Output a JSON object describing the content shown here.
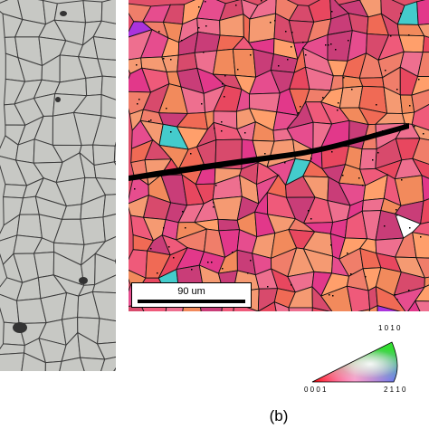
{
  "panel_b": {
    "caption": "(b)",
    "scale_bar": {
      "label": "90 um"
    },
    "color_key": {
      "top_label": "1 0 1 0",
      "left_label": "0 0 0 1",
      "right_label": "2 1 1 0"
    }
  },
  "colors": {
    "optical_background": "#c7c8c4",
    "grain_boundary": "#3b3b3b",
    "ebsd_palette": [
      "#e8475f",
      "#ef5a7a",
      "#f06a55",
      "#e64d8e",
      "#f07e6a",
      "#d84a6c",
      "#f59a72",
      "#ee6f8f",
      "#e2388a",
      "#f28a5c",
      "#ff9f6b",
      "#c93d78"
    ],
    "ebsd_accents": [
      "#2233dd",
      "#aa33dd",
      "#22cc66",
      "#44cccc",
      "#ffffff"
    ]
  }
}
